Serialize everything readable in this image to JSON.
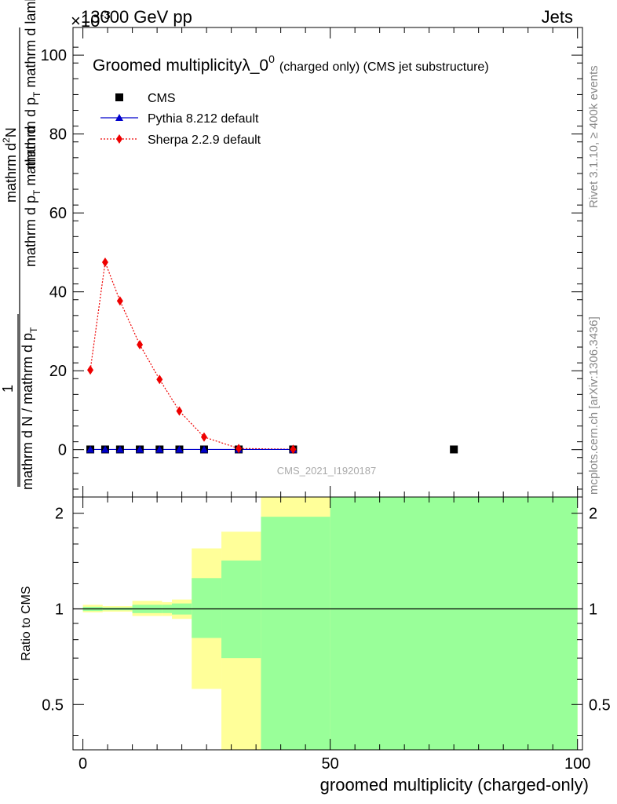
{
  "header": {
    "left": "13000 GeV pp",
    "right": "Jets",
    "exponent": "×10",
    "exponent_power": "-3"
  },
  "side_text": {
    "rivet": "Rivet 3.1.10, ≥ 400k events",
    "mcplots": "mcplots.cern.ch [arXiv:1306.3436]"
  },
  "watermark": "CMS_2021_I1920187",
  "chart_data": [
    {
      "type": "scatter",
      "title": "Groomed multiplicityλ_0",
      "title_sup": "0",
      "title_suffix": "(charged only) (CMS jet substructure)",
      "ylabel": "1/(mathrm d N / mathrm d p_T) mathrm d²N / (mathrm d p_T mathrm d lambda)",
      "ylabel_numerator": "mathrm d²N",
      "ylabel_denominator_top": "1",
      "ylabel_denominator": "mathrm d N / mathrm d p",
      "ylabel_rest": "mathrm d p",
      "ylabel_rest2": "mathrm d lambda",
      "xlim": [
        -2,
        101
      ],
      "ylim": [
        -12,
        107
      ],
      "yticks": [
        0,
        20,
        40,
        60,
        80,
        100
      ],
      "legend_position": "top-left",
      "series": [
        {
          "name": "CMS",
          "color": "#000000",
          "marker": "square",
          "x": [
            1.5,
            4.5,
            7.5,
            11.5,
            15.5,
            19.5,
            24.5,
            31.5,
            42.5,
            75
          ],
          "y": [
            0.05,
            0.05,
            0.05,
            0.05,
            0.05,
            0.05,
            0.05,
            0.05,
            0.05,
            0.05
          ]
        },
        {
          "name": "Pythia 8.212 default",
          "color": "#0000cc",
          "marker": "triangle",
          "x": [
            1.5,
            4.5,
            7.5,
            11.5,
            15.5,
            19.5,
            24.5,
            31.5,
            42.5
          ],
          "y": [
            0.05,
            0.05,
            0.05,
            0.05,
            0.05,
            0.05,
            0.05,
            0.05,
            0.05
          ]
        },
        {
          "name": "Sherpa 2.2.9 default",
          "color": "#ee0000",
          "marker": "diamond",
          "x": [
            1.5,
            4.5,
            7.5,
            11.5,
            15.5,
            19.5,
            24.5,
            31.5,
            42.5
          ],
          "y": [
            20.2,
            47.5,
            37.7,
            26.6,
            17.8,
            9.8,
            3.2,
            0.3,
            0.1
          ]
        }
      ]
    },
    {
      "type": "area",
      "ylabel": "Ratio to CMS",
      "xlabel": "groomed multiplicity (charged-only)",
      "xlim": [
        -2,
        101
      ],
      "ylim": [
        0.36,
        2.25
      ],
      "yticks": [
        0.5,
        1,
        2
      ],
      "ytick_labels": [
        "0.5",
        "1",
        "2"
      ],
      "xticks": [
        0,
        50,
        100
      ],
      "xtick_labels": [
        "0",
        "50",
        "100"
      ],
      "band_colors": {
        "stat": "#99ff99",
        "syst": "#ffff99"
      },
      "bins": [
        {
          "x0": 0,
          "x1": 4,
          "stat": [
            0.985,
            1.015
          ],
          "syst": [
            0.975,
            1.03
          ]
        },
        {
          "x0": 4,
          "x1": 10,
          "stat": [
            0.99,
            1.01
          ],
          "syst": [
            0.98,
            1.02
          ]
        },
        {
          "x0": 10,
          "x1": 16,
          "stat": [
            0.97,
            1.03
          ],
          "syst": [
            0.95,
            1.06
          ]
        },
        {
          "x0": 16,
          "x1": 18,
          "stat": [
            0.97,
            1.03
          ],
          "syst": [
            0.95,
            1.05
          ]
        },
        {
          "x0": 18,
          "x1": 22,
          "stat": [
            0.96,
            1.04
          ],
          "syst": [
            0.93,
            1.07
          ]
        },
        {
          "x0": 22,
          "x1": 28,
          "stat": [
            0.81,
            1.25
          ],
          "syst": [
            0.56,
            1.55
          ]
        },
        {
          "x0": 28,
          "x1": 36,
          "stat": [
            0.7,
            1.42
          ],
          "syst": [
            0.3,
            1.75
          ]
        },
        {
          "x0": 36,
          "x1": 50,
          "stat": [
            0.0,
            1.95
          ],
          "syst": [
            0.0,
            3.0
          ]
        },
        {
          "x0": 50,
          "x1": 100,
          "stat": [
            0.0,
            3.0
          ],
          "syst": [
            0.0,
            3.0
          ]
        }
      ]
    }
  ]
}
